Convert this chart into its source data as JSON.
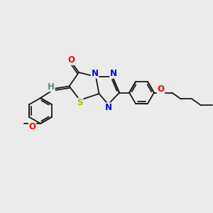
{
  "background_color": "#ebebeb",
  "bond_color": "#1a1a1a",
  "atom_colors": {
    "O": "#ff0000",
    "N": "#0000ff",
    "S": "#b8b800",
    "C": "#1a1a1a",
    "H": "#5a8a8a"
  },
  "font_size_atoms": 8.5,
  "fig_width": 3.0,
  "fig_height": 3.0,
  "dpi": 100,
  "xlim": [
    0,
    10
  ],
  "ylim": [
    0,
    10
  ]
}
